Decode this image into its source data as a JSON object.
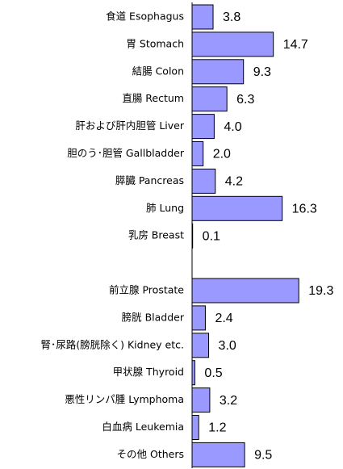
{
  "chart_data": {
    "type": "bar",
    "orientation": "horizontal",
    "categories": [
      "食道 Esophagus",
      "胃 Stomach",
      "結腸 Colon",
      "直腸 Rectum",
      "肝および肝内胆管 Liver",
      "胆のう･胆管 Gallbladder",
      "膵臓 Pancreas",
      "肺 Lung",
      "乳房 Breast",
      null,
      "前立腺 Prostate",
      "膀胱 Bladder",
      "腎･尿路(膀胱除く) Kidney etc.",
      "甲状腺 Thyroid",
      "悪性リンパ腫 Lymphoma",
      "白血病 Leukemia",
      "その他 Others"
    ],
    "values": [
      3.8,
      14.7,
      9.3,
      6.3,
      4.0,
      2.0,
      4.2,
      16.3,
      0.1,
      null,
      19.3,
      2.4,
      3.0,
      0.5,
      3.2,
      1.2,
      9.5
    ],
    "value_labels": [
      "3.8",
      "14.7",
      "9.3",
      "6.3",
      "4.0",
      "2.0",
      "4.2",
      "16.3",
      "0.1",
      null,
      "19.3",
      "2.4",
      "3.0",
      "0.5",
      "3.2",
      "1.2",
      "9.5"
    ],
    "color": "#9999ff",
    "xlim": [
      0,
      20
    ]
  }
}
